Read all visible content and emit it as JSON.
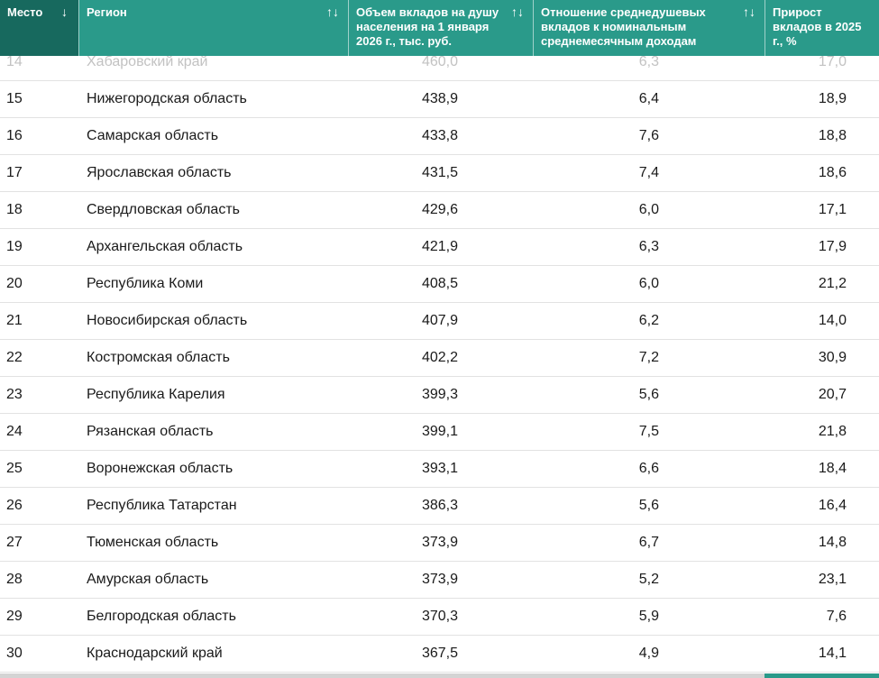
{
  "table": {
    "columns": [
      {
        "id": "place",
        "label": "Место",
        "sort_icon": "↓"
      },
      {
        "id": "region",
        "label": "Регион",
        "sort_icon": "↑↓"
      },
      {
        "id": "volume",
        "label": "Объем вкладов на душу населения на 1 января 2026 г., тыс. руб.",
        "sort_icon": "↑↓"
      },
      {
        "id": "ratio",
        "label": "Отношение среднедушевых вкладов к номинальным среднемесячным доходам",
        "sort_icon": "↑↓"
      },
      {
        "id": "growth",
        "label": "Прирост вкладов в 2025 г., %",
        "sort_icon": ""
      }
    ],
    "rows": [
      {
        "place": "14",
        "region": "Хабаровский край",
        "volume": "460,0",
        "ratio": "6,3",
        "growth": "17,0"
      },
      {
        "place": "15",
        "region": "Нижегородская область",
        "volume": "438,9",
        "ratio": "6,4",
        "growth": "18,9"
      },
      {
        "place": "16",
        "region": "Самарская область",
        "volume": "433,8",
        "ratio": "7,6",
        "growth": "18,8"
      },
      {
        "place": "17",
        "region": "Ярославская область",
        "volume": "431,5",
        "ratio": "7,4",
        "growth": "18,6"
      },
      {
        "place": "18",
        "region": "Свердловская область",
        "volume": "429,6",
        "ratio": "6,0",
        "growth": "17,1"
      },
      {
        "place": "19",
        "region": "Архангельская область",
        "volume": "421,9",
        "ratio": "6,3",
        "growth": "17,9"
      },
      {
        "place": "20",
        "region": "Республика Коми",
        "volume": "408,5",
        "ratio": "6,0",
        "growth": "21,2"
      },
      {
        "place": "21",
        "region": "Новосибирская область",
        "volume": "407,9",
        "ratio": "6,2",
        "growth": "14,0"
      },
      {
        "place": "22",
        "region": "Костромская область",
        "volume": "402,2",
        "ratio": "7,2",
        "growth": "30,9"
      },
      {
        "place": "23",
        "region": "Республика Карелия",
        "volume": "399,3",
        "ratio": "5,6",
        "growth": "20,7"
      },
      {
        "place": "24",
        "region": "Рязанская область",
        "volume": "399,1",
        "ratio": "7,5",
        "growth": "21,8"
      },
      {
        "place": "25",
        "region": "Воронежская область",
        "volume": "393,1",
        "ratio": "6,6",
        "growth": "18,4"
      },
      {
        "place": "26",
        "region": "Республика Татарстан",
        "volume": "386,3",
        "ratio": "5,6",
        "growth": "16,4"
      },
      {
        "place": "27",
        "region": "Тюменская область",
        "volume": "373,9",
        "ratio": "6,7",
        "growth": "14,8"
      },
      {
        "place": "28",
        "region": "Амурская область",
        "volume": "373,9",
        "ratio": "5,2",
        "growth": "23,1"
      },
      {
        "place": "29",
        "region": "Белгородская область",
        "volume": "370,3",
        "ratio": "5,9",
        "growth": "7,6"
      },
      {
        "place": "30",
        "region": "Краснодарский край",
        "volume": "367,5",
        "ratio": "4,9",
        "growth": "14,1"
      }
    ]
  },
  "colors": {
    "header_bg": "#2a9a8a",
    "header_active_bg": "#17695e",
    "header_text": "#ffffff",
    "row_divider": "#e2e2e2",
    "faded_row_text": "#c2c2c2"
  }
}
